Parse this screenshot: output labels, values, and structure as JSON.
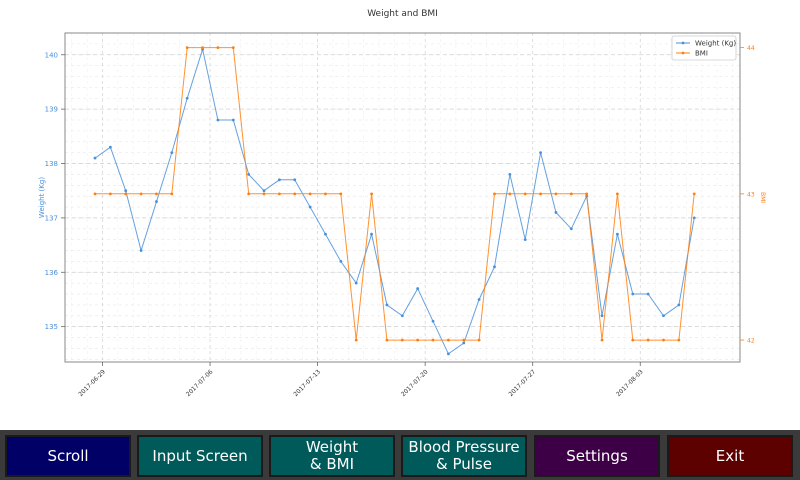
{
  "chart_data": {
    "type": "line",
    "title": "Weight and BMI",
    "x_ticks": [
      "2017-06-29",
      "2017-07-06",
      "2017-07-13",
      "2017-07-20",
      "2017-07-27",
      "2017-08-03"
    ],
    "left_axis": {
      "label": "Weight (Kg)",
      "ticks": [
        135,
        136,
        137,
        138,
        139,
        140
      ],
      "range": [
        134.35,
        140.4
      ],
      "color": "#4a90d9"
    },
    "right_axis": {
      "label": "BMI",
      "ticks": [
        42,
        43,
        44
      ],
      "range": [
        41.85,
        44.1
      ],
      "color": "#ff7f0e"
    },
    "grid": true,
    "legend_position": "top-right",
    "series": [
      {
        "name": "Weight (Kg)",
        "axis": "left",
        "color": "#4a90d9",
        "values": [
          138.1,
          138.3,
          137.5,
          136.4,
          137.3,
          138.2,
          139.2,
          140.1,
          138.8,
          138.8,
          137.8,
          137.5,
          137.7,
          137.7,
          137.2,
          136.7,
          136.2,
          135.8,
          136.7,
          135.4,
          135.2,
          135.7,
          135.1,
          134.5,
          134.7,
          135.5,
          136.1,
          137.8,
          136.6,
          138.2,
          137.1,
          136.8,
          137.4,
          135.2,
          136.7,
          135.6,
          135.6,
          135.2,
          135.4,
          137.0
        ]
      },
      {
        "name": "BMI",
        "axis": "right",
        "color": "#ff7f0e",
        "values": [
          43,
          43,
          43,
          43,
          43,
          43,
          44,
          44,
          44,
          44,
          43,
          43,
          43,
          43,
          43,
          43,
          43,
          42,
          43,
          42,
          42,
          42,
          42,
          42,
          42,
          42,
          43,
          43,
          43,
          43,
          43,
          43,
          43,
          42,
          43,
          42,
          42,
          42,
          42,
          43
        ]
      }
    ]
  },
  "buttons": {
    "scroll": "Scroll",
    "input_screen": "Input Screen",
    "weight_bmi": "Weight\n& BMI",
    "bp_pulse": "Blood Pressure\n& Pulse",
    "settings": "Settings",
    "exit": "Exit"
  }
}
